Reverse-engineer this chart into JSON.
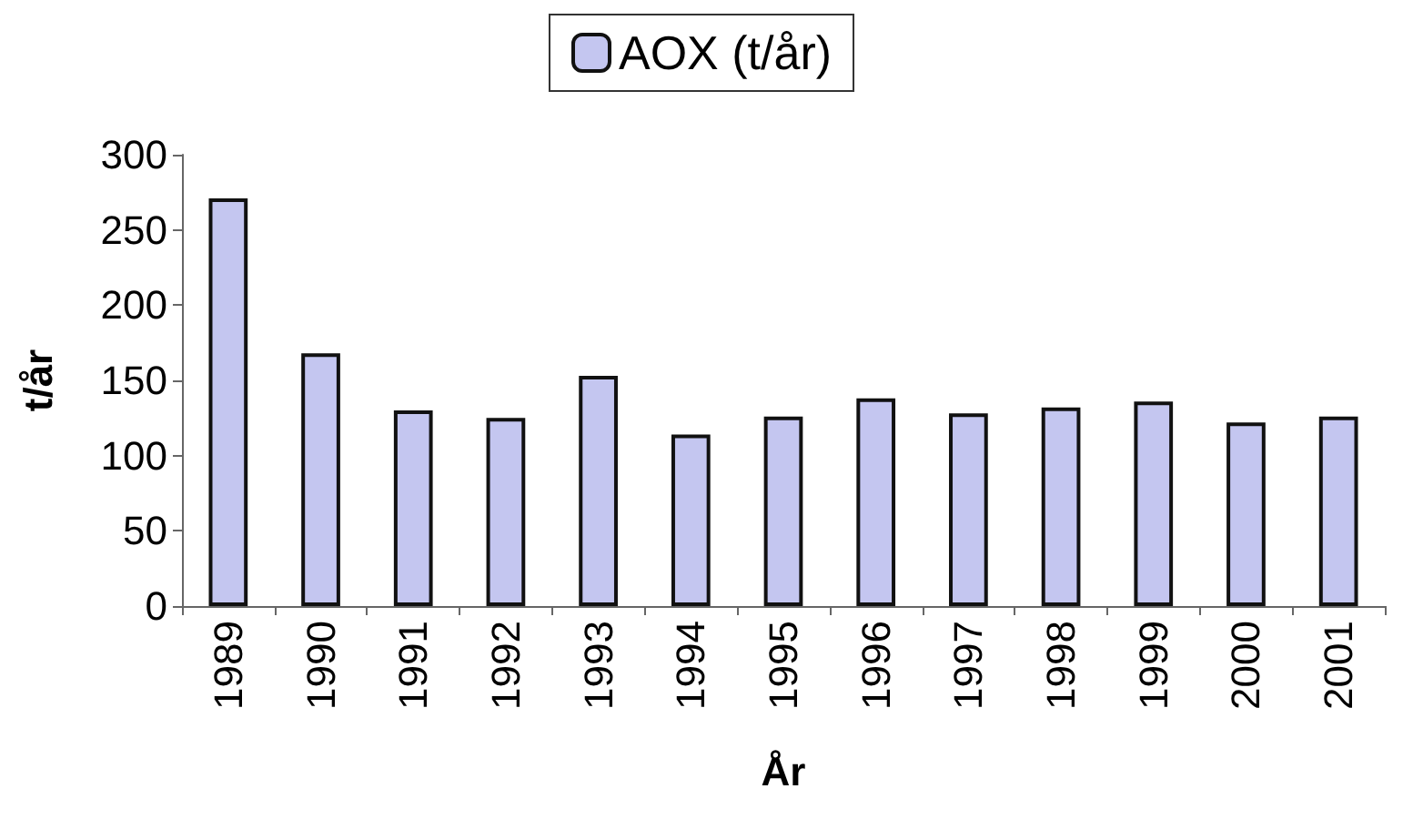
{
  "chart_data": {
    "type": "bar",
    "xlabel": "År",
    "ylabel": "t/år",
    "categories": [
      "1989",
      "1990",
      "1991",
      "1992",
      "1993",
      "1994",
      "1995",
      "1996",
      "1997",
      "1998",
      "1999",
      "2000",
      "2001"
    ],
    "series": [
      {
        "name": "AOX (t/år)",
        "color": "#c4c6f0",
        "values": [
          271,
          168,
          130,
          125,
          153,
          114,
          126,
          138,
          128,
          132,
          136,
          122,
          126
        ]
      }
    ],
    "ylim": [
      0,
      300
    ],
    "yticks": [
      0,
      50,
      100,
      150,
      200,
      250,
      300
    ],
    "grid": false,
    "legend": "top"
  }
}
